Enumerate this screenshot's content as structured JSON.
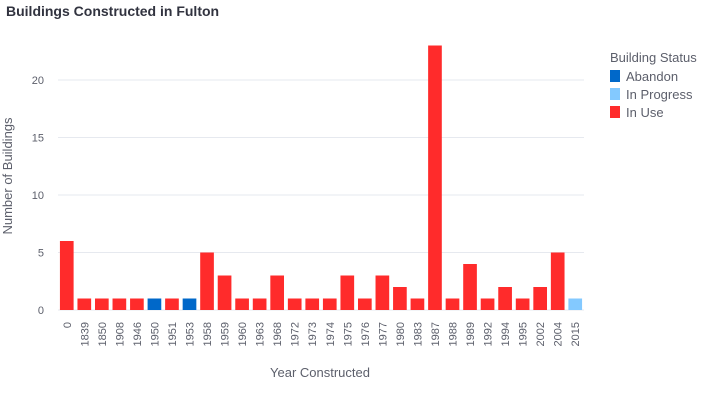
{
  "chart_data": {
    "type": "bar",
    "title": "Buildings Constructed in Fulton",
    "xlabel": "Year Constructed",
    "ylabel": "Number of Buildings",
    "ylim": [
      0,
      24
    ],
    "yticks": [
      0,
      5,
      10,
      15,
      20
    ],
    "grid": true,
    "legend_placement": "top-right",
    "legend_title": "Building Status",
    "categories": [
      "0",
      "1839",
      "1850",
      "1908",
      "1946",
      "1950",
      "1951",
      "1953",
      "1958",
      "1959",
      "1960",
      "1963",
      "1968",
      "1972",
      "1973",
      "1974",
      "1975",
      "1976",
      "1977",
      "1980",
      "1983",
      "1987",
      "1988",
      "1989",
      "1992",
      "1994",
      "1995",
      "2002",
      "2004",
      "2015"
    ],
    "series": [
      {
        "name": "Abandon",
        "color": "#0068c9",
        "values": [
          0,
          0,
          0,
          0,
          0,
          1,
          0,
          1,
          0,
          0,
          0,
          0,
          0,
          0,
          0,
          0,
          0,
          0,
          0,
          0,
          0,
          0,
          0,
          0,
          0,
          0,
          0,
          0,
          0,
          0
        ]
      },
      {
        "name": "In Progress",
        "color": "#83c9ff",
        "values": [
          0,
          0,
          0,
          0,
          0,
          0,
          0,
          0,
          0,
          0,
          0,
          0,
          0,
          0,
          0,
          0,
          0,
          0,
          0,
          0,
          0,
          0,
          0,
          0,
          0,
          0,
          0,
          0,
          0,
          1
        ]
      },
      {
        "name": "In Use",
        "color": "#ff2b2b",
        "values": [
          6,
          1,
          1,
          1,
          1,
          0,
          1,
          0,
          5,
          3,
          1,
          1,
          3,
          1,
          1,
          1,
          3,
          1,
          3,
          2,
          1,
          23,
          1,
          4,
          1,
          2,
          1,
          2,
          5,
          0
        ]
      }
    ]
  }
}
